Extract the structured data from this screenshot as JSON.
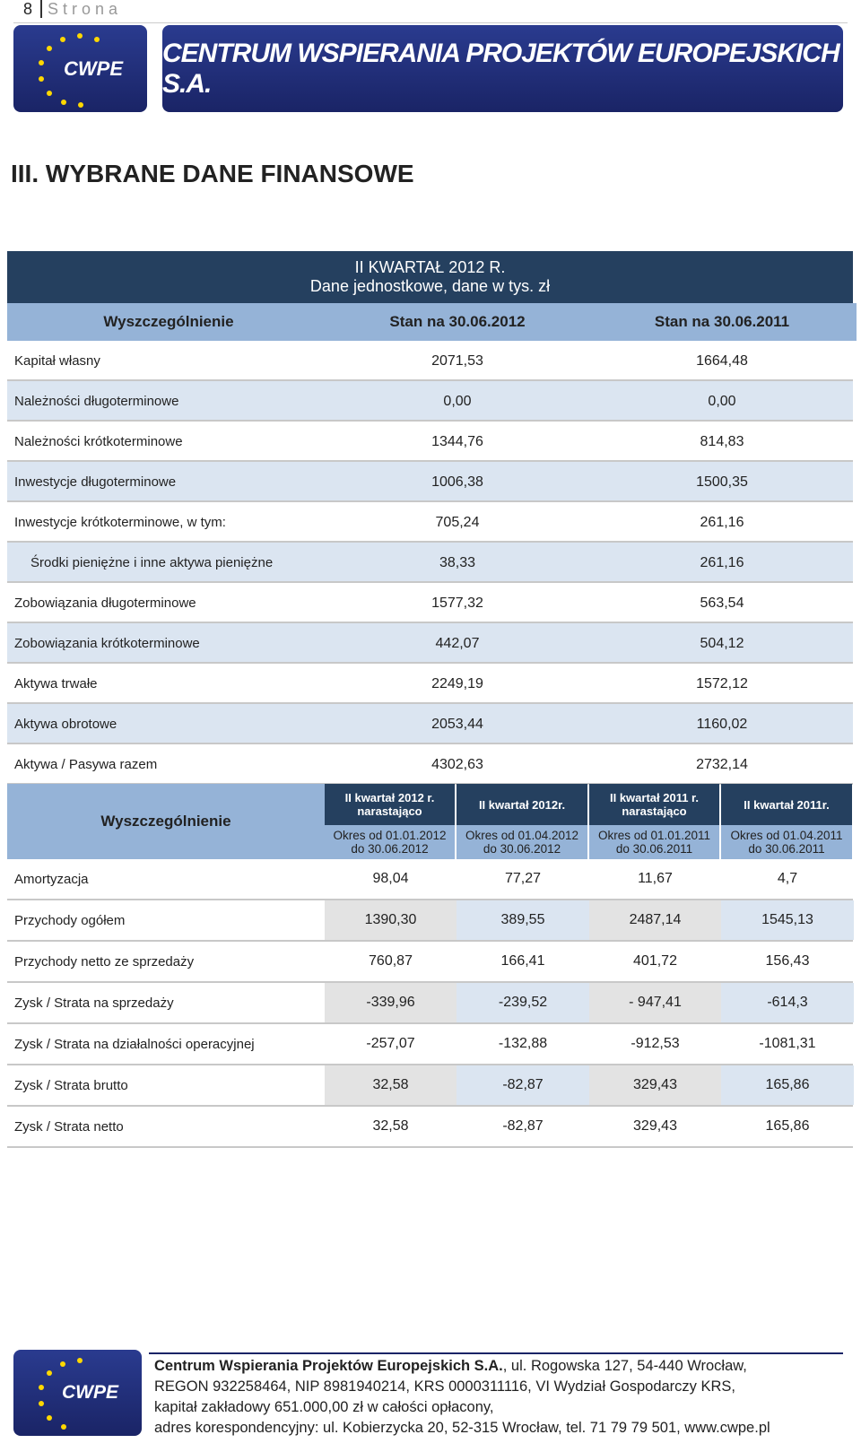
{
  "header": {
    "page_number": "8",
    "page_label": "Strona",
    "logo": "CWPE",
    "banner": "CENTRUM WSPIERANIA PROJEKTÓW EUROPEJSKICH S.A."
  },
  "section_title": "III. WYBRANE DANE FINANSOWE",
  "table1": {
    "title": "II KWARTAŁ 2012 R.",
    "subtitle": "Dane jednostkowe, dane w tys. zł",
    "columns": [
      "Wyszczególnienie",
      "Stan na 30.06.2012",
      "Stan na 30.06.2011"
    ],
    "rows": [
      [
        "Kapitał własny",
        "2071,53",
        "1664,48"
      ],
      [
        "Należności długoterminowe",
        "0,00",
        "0,00"
      ],
      [
        "Należności krótkoterminowe",
        "1344,76",
        "814,83"
      ],
      [
        "Inwestycje długoterminowe",
        "1006,38",
        "1500,35"
      ],
      [
        "Inwestycje krótkoterminowe, w tym:",
        "705,24",
        "261,16"
      ],
      [
        "Środki pieniężne i inne aktywa pieniężne",
        "38,33",
        "261,16"
      ],
      [
        "Zobowiązania długoterminowe",
        "1577,32",
        "563,54"
      ],
      [
        "Zobowiązania krótkoterminowe",
        "442,07",
        "504,12"
      ],
      [
        "Aktywa trwałe",
        "2249,19",
        "1572,12"
      ],
      [
        "Aktywa obrotowe",
        "2053,44",
        "1160,02"
      ],
      [
        "Aktywa / Pasywa razem",
        "4302,63",
        "2732,14"
      ]
    ]
  },
  "table2": {
    "label_header": "Wyszczególnienie",
    "columns": [
      {
        "title": [
          "II kwartał 2012 r.",
          "narastająco"
        ],
        "period": [
          "Okres od 01.01.2012",
          "do 30.06.2012"
        ]
      },
      {
        "title": [
          "II kwartał 2012r."
        ],
        "period": [
          "Okres od 01.04.2012",
          "do 30.06.2012"
        ]
      },
      {
        "title": [
          "II kwartał 2011 r.",
          "narastająco"
        ],
        "period": [
          "Okres od 01.01.2011",
          "do 30.06.2011"
        ]
      },
      {
        "title": [
          "II kwartał 2011r."
        ],
        "period": [
          "Okres od 01.04.2011",
          "do 30.06.2011"
        ]
      }
    ],
    "rows": [
      [
        "Amortyzacja",
        "98,04",
        "77,27",
        "11,67",
        "4,7"
      ],
      [
        "Przychody ogółem",
        "1390,30",
        "389,55",
        "2487,14",
        "1545,13"
      ],
      [
        "Przychody netto ze sprzedaży",
        "760,87",
        "166,41",
        "401,72",
        "156,43"
      ],
      [
        "Zysk / Strata na sprzedaży",
        "-339,96",
        "-239,52",
        "- 947,41",
        "-614,3"
      ],
      [
        "Zysk / Strata na działalności operacyjnej",
        "-257,07",
        "-132,88",
        "-912,53",
        "-1081,31"
      ],
      [
        "Zysk / Strata brutto",
        "32,58",
        "-82,87",
        "329,43",
        "165,86"
      ],
      [
        "Zysk / Strata netto",
        "32,58",
        "-82,87",
        "329,43",
        "165,86"
      ]
    ]
  },
  "footer": {
    "company": "Centrum Wspierania Projektów Europejskich S.A.",
    "lines": [
      ", ul. Rogowska 127, 54-440 Wrocław,",
      "REGON 932258464, NIP 8981940214, KRS 0000311116, VI Wydział Gospodarczy KRS,",
      "kapitał zakładowy 651.000,00 zł w całości opłacony,",
      "adres korespondencyjny: ul. Kobierzycka 20, 52-315 Wrocław, tel. 71 79 79 501, www.cwpe.pl"
    ]
  }
}
